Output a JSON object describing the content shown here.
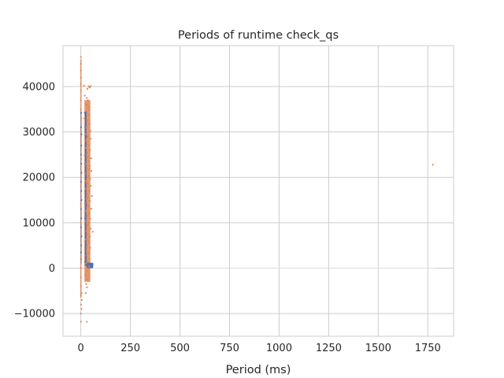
{
  "chart_data": {
    "type": "scatter",
    "title": "Periods of runtime check_qs",
    "xlabel": "Period (ms)",
    "ylabel": "",
    "xlim": [
      -90,
      1880
    ],
    "ylim": [
      -15000,
      49000
    ],
    "xticks": [
      0,
      250,
      500,
      750,
      1000,
      1250,
      1500,
      1750
    ],
    "xtick_labels": [
      "0",
      "250",
      "500",
      "750",
      "1000",
      "1250",
      "1500",
      "1750"
    ],
    "yticks": [
      -10000,
      0,
      10000,
      20000,
      30000,
      40000
    ],
    "ytick_labels": [
      "−10000",
      "0",
      "10000",
      "20000",
      "30000",
      "40000"
    ],
    "grid": true,
    "legend": "none",
    "colors": {
      "series_a": "#4c72b0",
      "series_b": "#dd8452",
      "grid": "#cccccc",
      "spine": "#cccccc"
    },
    "series": [
      {
        "color": "#4c72b0",
        "points": [
          [
            1,
            34200
          ],
          [
            2,
            33000
          ],
          [
            1,
            31000
          ],
          [
            3,
            29500
          ],
          [
            2,
            27000
          ],
          [
            1,
            25000
          ],
          [
            2,
            23000
          ],
          [
            3,
            21000
          ],
          [
            1,
            19000
          ],
          [
            2,
            17000
          ],
          [
            3,
            15000
          ],
          [
            1,
            13000
          ],
          [
            2,
            11000
          ],
          [
            1,
            9000
          ],
          [
            3,
            7000
          ],
          [
            2,
            5000
          ],
          [
            1,
            3500
          ],
          [
            2,
            2000
          ],
          [
            20,
            34200
          ],
          [
            25,
            33500
          ],
          [
            22,
            31000
          ],
          [
            28,
            29000
          ],
          [
            24,
            26000
          ],
          [
            21,
            23000
          ],
          [
            26,
            20000
          ],
          [
            23,
            17000
          ],
          [
            27,
            14000
          ],
          [
            22,
            11000
          ],
          [
            25,
            8000
          ],
          [
            24,
            6000
          ],
          [
            23,
            4000
          ],
          [
            26,
            2500
          ],
          [
            22,
            1500
          ],
          [
            30,
            700
          ],
          [
            35,
            650
          ],
          [
            40,
            700
          ],
          [
            45,
            720
          ],
          [
            50,
            680
          ],
          [
            55,
            700
          ],
          [
            60,
            710
          ]
        ]
      },
      {
        "color": "#dd8452",
        "points": [
          [
            0,
            46500
          ],
          [
            0,
            45000
          ],
          [
            0,
            43500
          ],
          [
            1,
            42000
          ],
          [
            0,
            40500
          ],
          [
            1,
            39000
          ],
          [
            0,
            37000
          ],
          [
            0,
            35000
          ],
          [
            1,
            33000
          ],
          [
            0,
            30000
          ],
          [
            1,
            28000
          ],
          [
            0,
            26000
          ],
          [
            1,
            24000
          ],
          [
            0,
            22000
          ],
          [
            1,
            20000
          ],
          [
            0,
            18000
          ],
          [
            1,
            16000
          ],
          [
            0,
            14000
          ],
          [
            1,
            12000
          ],
          [
            0,
            10000
          ],
          [
            1,
            8000
          ],
          [
            0,
            6000
          ],
          [
            1,
            4000
          ],
          [
            0,
            2000
          ],
          [
            1,
            0
          ],
          [
            0,
            -2000
          ],
          [
            1,
            -4000
          ],
          [
            0,
            -6000
          ],
          [
            1,
            -8000
          ],
          [
            0,
            -10000
          ],
          [
            0,
            -11800
          ],
          [
            30,
            -11800
          ],
          [
            3,
            -9000
          ],
          [
            5,
            -7000
          ],
          [
            4,
            -5500
          ],
          [
            15,
            40200
          ],
          [
            40,
            40000
          ],
          [
            50,
            40100
          ],
          [
            45,
            39800
          ],
          [
            33,
            39500
          ],
          [
            20,
            38000
          ],
          [
            35,
            37000
          ],
          [
            28,
            36000
          ],
          [
            42,
            35500
          ],
          [
            38,
            34800
          ],
          [
            18,
            33000
          ],
          [
            32,
            32500
          ],
          [
            44,
            31800
          ],
          [
            27,
            31000
          ],
          [
            48,
            30200
          ],
          [
            22,
            29500
          ],
          [
            36,
            29000
          ],
          [
            50,
            28500
          ],
          [
            29,
            27800
          ],
          [
            41,
            27000
          ],
          [
            25,
            26500
          ],
          [
            46,
            26000
          ],
          [
            33,
            25400
          ],
          [
            19,
            24800
          ],
          [
            52,
            24200
          ],
          [
            38,
            23600
          ],
          [
            24,
            23000
          ],
          [
            44,
            22500
          ],
          [
            30,
            22000
          ],
          [
            53,
            21400
          ],
          [
            21,
            20800
          ],
          [
            39,
            20300
          ],
          [
            47,
            19700
          ],
          [
            26,
            19200
          ],
          [
            35,
            18600
          ],
          [
            50,
            18100
          ],
          [
            23,
            17500
          ],
          [
            42,
            17000
          ],
          [
            31,
            16400
          ],
          [
            55,
            15900
          ],
          [
            28,
            15300
          ],
          [
            45,
            14800
          ],
          [
            20,
            14200
          ],
          [
            37,
            13700
          ],
          [
            52,
            13100
          ],
          [
            25,
            12600
          ],
          [
            43,
            12000
          ],
          [
            33,
            11500
          ],
          [
            48,
            10900
          ],
          [
            22,
            10400
          ],
          [
            40,
            9800
          ],
          [
            30,
            9300
          ],
          [
            50,
            8700
          ],
          [
            60,
            8000
          ],
          [
            27,
            8200
          ],
          [
            35,
            7500
          ],
          [
            45,
            6900
          ],
          [
            24,
            6300
          ],
          [
            41,
            5700
          ],
          [
            32,
            5100
          ],
          [
            47,
            4500
          ],
          [
            28,
            3900
          ],
          [
            38,
            3300
          ],
          [
            21,
            2700
          ],
          [
            44,
            2100
          ],
          [
            35,
            1500
          ],
          [
            26,
            1000
          ],
          [
            42,
            400
          ],
          [
            30,
            -500
          ],
          [
            23,
            -1500
          ],
          [
            34,
            -2500
          ],
          [
            27,
            -3500
          ],
          [
            31,
            -4200
          ],
          [
            25,
            -5500
          ],
          [
            30,
            37500
          ],
          [
            38,
            33800
          ],
          [
            26,
            28200
          ],
          [
            34,
            24500
          ],
          [
            40,
            21800
          ],
          [
            29,
            18900
          ],
          [
            36,
            15600
          ],
          [
            43,
            12300
          ],
          [
            31,
            9500
          ],
          [
            37,
            6200
          ],
          [
            1775,
            22800
          ]
        ]
      },
      {
        "color": "#dddddd",
        "line": true,
        "points": [
          [
            60,
            0
          ],
          [
            1790,
            0
          ]
        ]
      }
    ]
  }
}
